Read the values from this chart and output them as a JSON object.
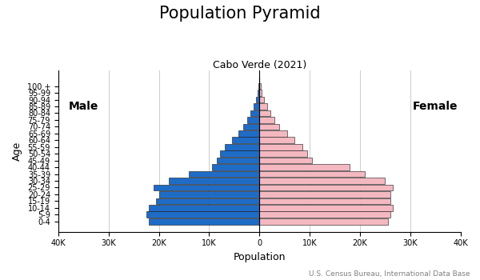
{
  "title": "Population Pyramid",
  "subtitle": "Cabo Verde (2021)",
  "xlabel": "Population",
  "ylabel": "Age",
  "footnote": "U.S. Census Bureau, International Data Base",
  "age_groups": [
    "0-4",
    "5-9",
    "10-14",
    "15-19",
    "20-24",
    "25-29",
    "30-34",
    "35-39",
    "40-44",
    "45-49",
    "50-54",
    "55-59",
    "60-64",
    "65-69",
    "70-74",
    "75-79",
    "80-84",
    "85-89",
    "90-94",
    "95-99",
    "100 +"
  ],
  "male": [
    22000,
    22500,
    22000,
    20500,
    20000,
    21000,
    18000,
    14000,
    9500,
    8500,
    7800,
    6800,
    5500,
    4200,
    3200,
    2500,
    1800,
    1200,
    700,
    400,
    200
  ],
  "female": [
    25500,
    26000,
    26500,
    26000,
    26000,
    26500,
    25000,
    21000,
    18000,
    10500,
    9500,
    8500,
    7000,
    5500,
    4000,
    3000,
    2200,
    1500,
    900,
    500,
    300
  ],
  "male_color": "#1f6cc7",
  "female_color": "#f4b8c1",
  "bar_edge_color": "#111111",
  "bar_linewidth": 0.4,
  "xlim": 40000,
  "background_color": "#ffffff",
  "grid_color": "#cccccc",
  "male_label": "Male",
  "female_label": "Female",
  "title_fontsize": 15,
  "subtitle_fontsize": 9,
  "axis_label_fontsize": 9,
  "tick_fontsize": 7,
  "male_female_fontsize": 10
}
